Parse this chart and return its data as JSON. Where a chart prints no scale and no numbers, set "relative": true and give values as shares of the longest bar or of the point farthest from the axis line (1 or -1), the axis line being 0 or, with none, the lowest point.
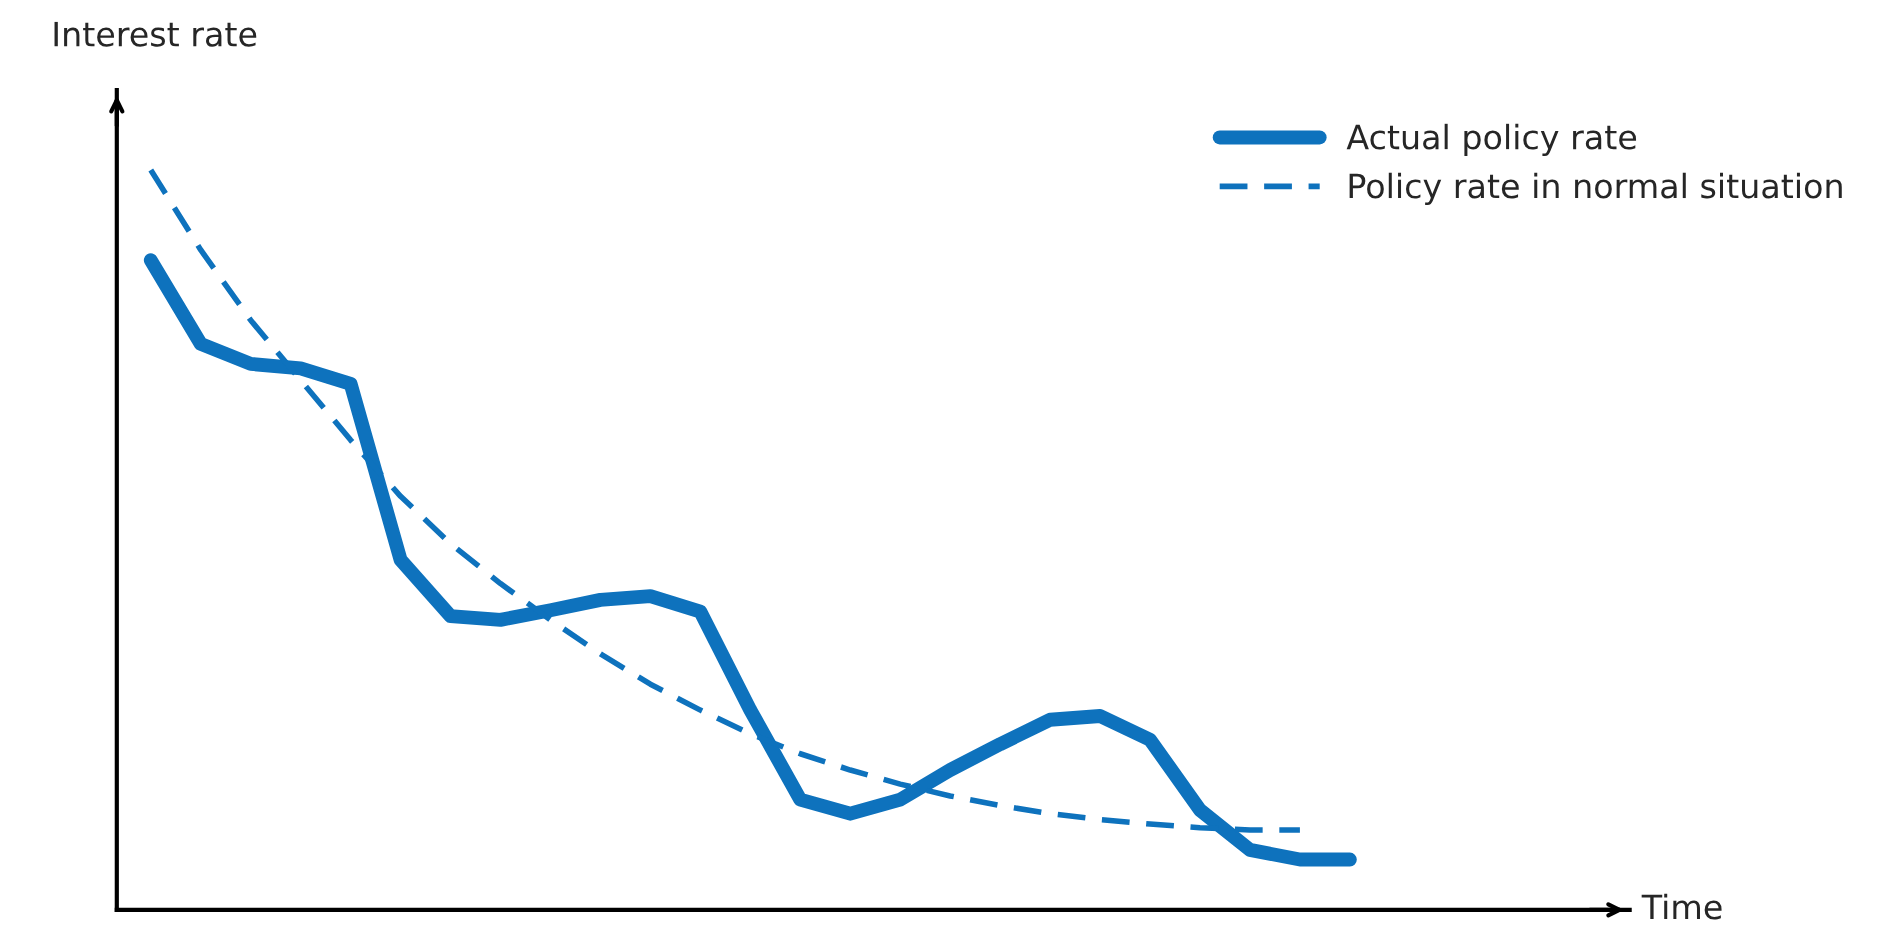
{
  "chart_data": {
    "type": "line",
    "relative": true,
    "annotations": [
      "Time"
    ],
    "ylabel": "Interest rate",
    "legend": "top right",
    "marker": "none",
    "categories": [
      null,
      null,
      null,
      null,
      null,
      null,
      null,
      null,
      null,
      null,
      null,
      null,
      null,
      null,
      null,
      null,
      null,
      null,
      null,
      null,
      null,
      null,
      null,
      null,
      null
    ],
    "series": [
      {
        "name": "Actual policy rate",
        "color": "#0e72bd",
        "line_style": "solid",
        "values": [
          0.878,
          0.765,
          0.738,
          0.732,
          0.711,
          0.473,
          0.397,
          0.392,
          0.405,
          0.419,
          0.424,
          0.403,
          0.27,
          0.149,
          0.13,
          0.149,
          0.189,
          0.224,
          0.257,
          0.262,
          0.23,
          0.135,
          0.081,
          0.068,
          0.068
        ]
      },
      {
        "name": "Policy rate in normal situation",
        "color": "#0e72bd",
        "line_style": "dashed",
        "values": [
          1.0,
          0.892,
          0.797,
          0.716,
          0.635,
          0.559,
          0.495,
          0.441,
          0.392,
          0.346,
          0.305,
          0.27,
          0.238,
          0.211,
          0.189,
          0.17,
          0.154,
          0.141,
          0.13,
          0.122,
          0.116,
          0.111,
          0.108,
          0.108,
          null
        ]
      }
    ]
  }
}
